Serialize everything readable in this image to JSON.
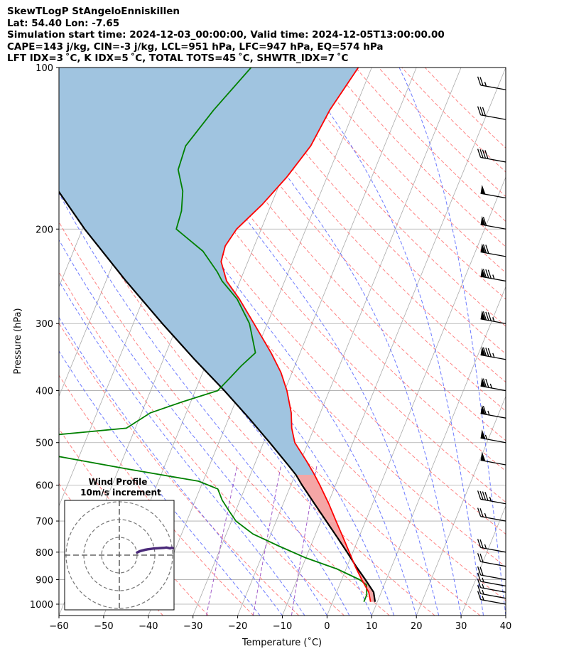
{
  "header": {
    "line1": "SkewTLogP StAngeloEnniskillen",
    "line2": "Lat: 54.40   Lon: -7.65",
    "line3": "Simulation start time: 2024-12-03_00:00:00, Valid time: 2024-12-05T13:00:00.00",
    "line4": "CAPE=143 j/kg, CIN=-3 j/kg, LCL=951 hPa, LFC=947 hPa, EQ=574 hPa",
    "line5": "LFT IDX=3 ˚C, K IDX=5 ˚C, TOTAL TOTS=45 ˚C, SHWTR_IDX=7 ˚C"
  },
  "chart_data": {
    "type": "line",
    "subtype": "skew-t log-p",
    "xlabel": "Temperature (˚C)",
    "ylabel": "Pressure (hPa)",
    "xlim": [
      -60,
      40
    ],
    "ylim": [
      1050,
      100
    ],
    "y_scale": "log",
    "x_ticks": [
      -60,
      -50,
      -40,
      -30,
      -20,
      -10,
      0,
      10,
      20,
      30,
      40
    ],
    "x_tick_labels": [
      "−60",
      "−50",
      "−40",
      "−30",
      "−20",
      "−10",
      "0",
      "10",
      "20",
      "30",
      "40"
    ],
    "y_ticks": [
      1000,
      900,
      800,
      700,
      600,
      500,
      400,
      300,
      200,
      100
    ],
    "y_tick_labels": [
      "1000",
      "900",
      "800",
      "700",
      "600",
      "500",
      "400",
      "300",
      "200",
      "100"
    ],
    "grid": true,
    "colors": {
      "temperature": "#ff0000",
      "dewpoint": "#008000",
      "parcel": "#000000",
      "cape_fill": "#a0c4e0",
      "cin_fill": "#f4a6a6",
      "dry_adiabat": "#ff5a5a",
      "moist_adiabat": "#4a5aff",
      "mixing_ratio": "#9040c0",
      "isotherm": "#aaaaaa",
      "hodograph": "#4b2a7a"
    },
    "series": [
      {
        "key": "temperature",
        "pressure": [
          990,
          950,
          900,
          850,
          800,
          750,
          700,
          650,
          600,
          570,
          540,
          500,
          470,
          440,
          400,
          370,
          340,
          300,
          270,
          250,
          230,
          215,
          200,
          180,
          160,
          140,
          120,
          100
        ],
        "values": [
          8.5,
          7.2,
          4.5,
          1.8,
          -0.8,
          -3.6,
          -6.6,
          -9.8,
          -13.5,
          -16.0,
          -18.8,
          -23.0,
          -25.0,
          -26.5,
          -29.5,
          -32.5,
          -36.5,
          -43.0,
          -48.5,
          -53.0,
          -56.0,
          -56.5,
          -55.5,
          -52.0,
          -49.0,
          -46.5,
          -45.5,
          -43.0
        ]
      },
      {
        "key": "dewpoint",
        "pressure": [
          990,
          960,
          920,
          900,
          860,
          820,
          780,
          740,
          700,
          670,
          640,
          610,
          590,
          560,
          530,
          500,
          470,
          440,
          420,
          400,
          380,
          360,
          340,
          300,
          270,
          250,
          240,
          220,
          200,
          185,
          170,
          155,
          140,
          120,
          100
        ],
        "values": [
          7.0,
          7.0,
          6.0,
          4.0,
          -2.0,
          -10.0,
          -17.0,
          -24.0,
          -29.0,
          -31.5,
          -34.0,
          -36.0,
          -41.0,
          -58.0,
          -75.0,
          -95.0,
          -62.0,
          -58.0,
          -52.0,
          -45.0,
          -43.5,
          -42.0,
          -40.0,
          -44.0,
          -49.0,
          -54.0,
          -56.0,
          -61.0,
          -69.0,
          -69.5,
          -71.0,
          -74.0,
          -74.5,
          -71.5,
          -67.0
        ]
      },
      {
        "key": "parcel",
        "pressure": [
          990,
          950,
          900,
          850,
          800,
          750,
          700,
          650,
          600,
          574,
          550,
          500,
          450,
          400,
          350,
          300,
          250,
          200,
          150,
          120,
          100
        ],
        "values": [
          9.5,
          8.3,
          5.3,
          2.0,
          -1.3,
          -4.9,
          -8.8,
          -13.0,
          -17.5,
          -19.8,
          -22.5,
          -28.6,
          -35.5,
          -43.5,
          -53.0,
          -63.5,
          -75.5,
          -89.5,
          -106.0,
          -117.0,
          -126.0
        ]
      }
    ],
    "wind_barbs": [
      {
        "pressure": 1000,
        "speed_kt": 15
      },
      {
        "pressure": 975,
        "speed_kt": 15
      },
      {
        "pressure": 950,
        "speed_kt": 15
      },
      {
        "pressure": 925,
        "speed_kt": 15
      },
      {
        "pressure": 900,
        "speed_kt": 20
      },
      {
        "pressure": 850,
        "speed_kt": 20
      },
      {
        "pressure": 800,
        "speed_kt": 25
      },
      {
        "pressure": 700,
        "speed_kt": 25
      },
      {
        "pressure": 650,
        "speed_kt": 45
      },
      {
        "pressure": 550,
        "speed_kt": 50
      },
      {
        "pressure": 500,
        "speed_kt": 55
      },
      {
        "pressure": 450,
        "speed_kt": 65
      },
      {
        "pressure": 400,
        "speed_kt": 75
      },
      {
        "pressure": 350,
        "speed_kt": 85
      },
      {
        "pressure": 300,
        "speed_kt": 85
      },
      {
        "pressure": 250,
        "speed_kt": 85
      },
      {
        "pressure": 225,
        "speed_kt": 70
      },
      {
        "pressure": 200,
        "speed_kt": 60
      },
      {
        "pressure": 175,
        "speed_kt": 50
      },
      {
        "pressure": 150,
        "speed_kt": 40
      },
      {
        "pressure": 125,
        "speed_kt": 30
      },
      {
        "pressure": 110,
        "speed_kt": 25
      }
    ],
    "hodograph": {
      "title_line1": "Wind Profile",
      "title_line2": "10m/s increment",
      "ring_increment_ms": 10,
      "rings": 3,
      "u": [
        10.0,
        11.5,
        13.0,
        14.5,
        16.0,
        17.5,
        19.0,
        20.5,
        22.0,
        23.5,
        25.0,
        26.5,
        27.5,
        28.5,
        29.5,
        30.0
      ],
      "v": [
        1.5,
        2.2,
        2.6,
        3.0,
        3.3,
        3.5,
        3.7,
        3.8,
        3.9,
        4.0,
        4.1,
        4.3,
        4.1,
        3.8,
        4.2,
        3.9
      ]
    }
  }
}
